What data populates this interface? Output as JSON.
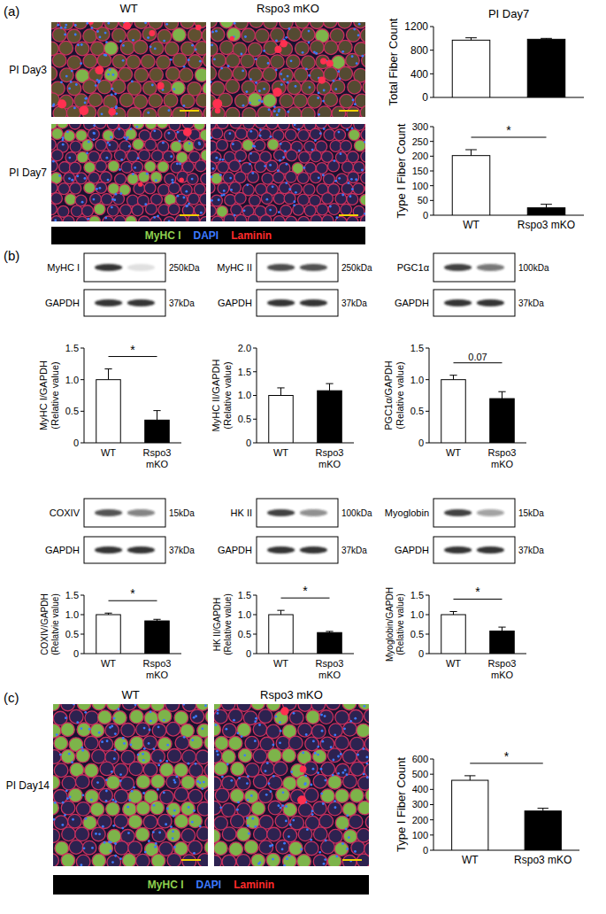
{
  "chart_data": [
    {
      "type": "bar",
      "title": "PI Day7",
      "y_label": [
        "Total Fiber Count"
      ],
      "categories": [
        "WT",
        "Rspo3 mKO"
      ],
      "values": [
        970,
        985
      ],
      "errors": [
        40,
        15
      ],
      "colors": [
        "#ffffff",
        "#000000"
      ],
      "ylim": [
        0,
        1200
      ],
      "yticks": [
        0,
        400,
        800,
        1200
      ],
      "grid": false,
      "tick_labels": "y"
    },
    {
      "type": "bar",
      "y_label": [
        "Type I Fiber Count"
      ],
      "categories": [
        "WT",
        "Rspo3 mKO"
      ],
      "values": [
        202,
        25
      ],
      "errors": [
        20,
        12
      ],
      "colors": [
        "#ffffff",
        "#000000"
      ],
      "ylim": [
        0,
        300
      ],
      "yticks": [
        0,
        50,
        100,
        150,
        200,
        250,
        300
      ],
      "grid": false,
      "annotation": "*"
    },
    {
      "type": "bar",
      "y_label": [
        "MyHC I/GAPDH",
        "(Relative value)"
      ],
      "categories": [
        "WT",
        "Rspo3 mKO"
      ],
      "values": [
        1.0,
        0.36
      ],
      "errors": [
        0.17,
        0.15
      ],
      "colors": [
        "#ffffff",
        "#000000"
      ],
      "ylim": [
        0,
        1.5
      ],
      "yticks": [
        0,
        0.5,
        {
          "value": 1,
          "label": "1.0"
        },
        1.5
      ],
      "grid": false,
      "annotation": "*"
    },
    {
      "type": "bar",
      "y_label": [
        "MyHC II/GAPDH",
        "(Relative value)"
      ],
      "categories": [
        "WT",
        "Rspo3 mKO"
      ],
      "values": [
        1.0,
        1.1
      ],
      "errors": [
        0.16,
        0.15
      ],
      "colors": [
        "#ffffff",
        "#000000"
      ],
      "ylim": [
        0,
        2
      ],
      "yticks": [
        0,
        0.5,
        {
          "value": 1,
          "label": "1.0"
        },
        1.5,
        {
          "value": 2,
          "label": "2.0"
        }
      ],
      "grid": false
    },
    {
      "type": "bar",
      "y_label": [
        "PGC1α/GAPDH",
        "(Relative value)"
      ],
      "categories": [
        "WT",
        "Rspo3 mKO"
      ],
      "values": [
        1.0,
        0.7
      ],
      "errors": [
        0.07,
        0.11
      ],
      "colors": [
        "#ffffff",
        "#000000"
      ],
      "ylim": [
        0,
        1.5
      ],
      "yticks": [
        0,
        0.5,
        {
          "value": 1,
          "label": "1.0"
        },
        1.5
      ],
      "grid": false,
      "annotation": "0.07"
    },
    {
      "type": "bar",
      "y_label": [
        "COXIV/GAPDH",
        "(Relatvie value)"
      ],
      "categories": [
        "WT",
        "Rspo3 mKO"
      ],
      "values": [
        1.0,
        0.84
      ],
      "errors": [
        0.04,
        0.04
      ],
      "colors": [
        "#ffffff",
        "#000000"
      ],
      "ylim": [
        0,
        1.5
      ],
      "yticks": [
        0,
        0.5,
        {
          "value": 1,
          "label": "1.0"
        },
        1.5
      ],
      "grid": false,
      "annotation": "*"
    },
    {
      "type": "bar",
      "y_label": [
        "HK II/GAPDH",
        "(Relative value)"
      ],
      "categories": [
        "WT",
        "Rspo3 mKO"
      ],
      "values": [
        1.0,
        0.54
      ],
      "errors": [
        0.11,
        0.03
      ],
      "colors": [
        "#ffffff",
        "#000000"
      ],
      "ylim": [
        0,
        1.5
      ],
      "yticks": [
        0,
        0.5,
        {
          "value": 1,
          "label": "1.0"
        },
        1.5
      ],
      "grid": false,
      "annotation": "*"
    },
    {
      "type": "bar",
      "y_label": [
        "Myoglobin/GAPDH",
        "(Relative value)"
      ],
      "categories": [
        "WT",
        "Rspo3 mKO"
      ],
      "values": [
        1.0,
        0.58
      ],
      "errors": [
        0.08,
        0.1
      ],
      "colors": [
        "#ffffff",
        "#000000"
      ],
      "ylim": [
        0,
        1.5
      ],
      "yticks": [
        0,
        0.5,
        {
          "value": 1,
          "label": "1.0"
        },
        1.5
      ],
      "grid": false,
      "annotation": "*"
    },
    {
      "type": "bar",
      "y_label": [
        "Type I Fiber Count"
      ],
      "categories": [
        "WT",
        "Rspo3 mKO"
      ],
      "values": [
        460,
        258
      ],
      "errors": [
        30,
        18
      ],
      "colors": [
        "#ffffff",
        "#000000"
      ],
      "ylim": [
        0,
        600
      ],
      "yticks": [
        0,
        100,
        200,
        300,
        400,
        500,
        600
      ],
      "grid": false,
      "annotation": "*"
    }
  ],
  "figure": {
    "panel_labels": [
      "(a)",
      "(b)",
      "(c)"
    ],
    "micrographs": [
      {
        "columns": [
          "WT",
          "Rspo3 mKO"
        ],
        "rows": [
          "PI Day3",
          "PI Day7"
        ]
      },
      {
        "columns": [
          "WT",
          "Rspo3 mKO"
        ],
        "rows": [
          "PI Day14"
        ]
      }
    ],
    "stain_legend": [
      {
        "label": "MyHC I",
        "color": "#8fd14f"
      },
      {
        "label": "DAPI",
        "color": "#3d7bff"
      },
      {
        "label": "Laminin",
        "color": "#ff2b2b"
      }
    ],
    "blots": [
      {
        "target": "MyHC I",
        "target_kda": "250kDa",
        "loading": "GAPDH",
        "loading_kda": "37kDa"
      },
      {
        "target": "MyHC II",
        "target_kda": "250kDa",
        "loading": "GAPDH",
        "loading_kda": "37kDa"
      },
      {
        "target": "PGC1α",
        "target_kda": "100kDa",
        "loading": "GAPDH",
        "loading_kda": "37kDa"
      },
      {
        "target": "COXIV",
        "target_kda": "15kDa",
        "loading": "GAPDH",
        "loading_kda": "37kDa"
      },
      {
        "target": "HK II",
        "target_kda": "100kDa",
        "loading": "GAPDH",
        "loading_kda": "37kDa"
      },
      {
        "target": "Myoglobin",
        "target_kda": "15kDa",
        "loading": "GAPDH",
        "loading_kda": "37kDa"
      }
    ]
  }
}
